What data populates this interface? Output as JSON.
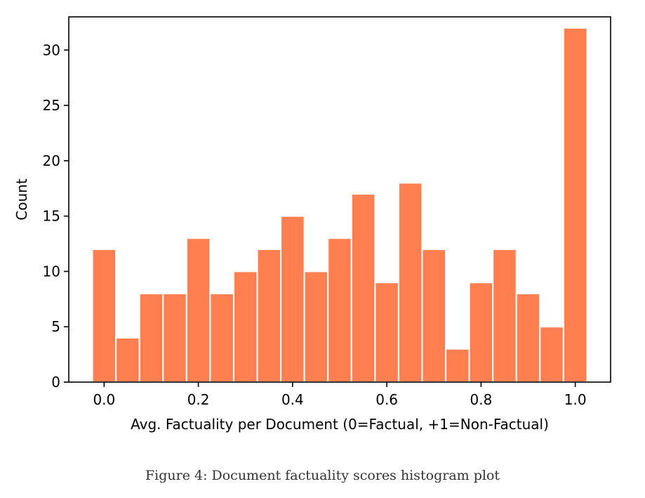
{
  "caption": "Figure 4: Document factuality scores histogram plot",
  "chart_data": {
    "type": "bar",
    "xlabel": "Avg. Factuality per Document (0=Factual, +1=Non-Factual)",
    "ylabel": "Count",
    "bar_color": "#ff7f50",
    "edge_color": "#ffffff",
    "xlim": [
      -0.075,
      1.075
    ],
    "ylim": [
      0,
      33
    ],
    "xticks": [
      0.0,
      0.2,
      0.4,
      0.6,
      0.8,
      1.0
    ],
    "xtick_labels": [
      "0.0",
      "0.2",
      "0.4",
      "0.6",
      "0.8",
      "1.0"
    ],
    "yticks": [
      0,
      5,
      10,
      15,
      20,
      25,
      30
    ],
    "ytick_labels": [
      "0",
      "5",
      "10",
      "15",
      "20",
      "25",
      "30"
    ],
    "bin_width": 0.05,
    "bin_centers": [
      0.0,
      0.05,
      0.1,
      0.15,
      0.2,
      0.25,
      0.3,
      0.35,
      0.4,
      0.45,
      0.5,
      0.55,
      0.6,
      0.65,
      0.7,
      0.75,
      0.8,
      0.85,
      0.9,
      0.95,
      1.0
    ],
    "values": [
      12,
      4,
      8,
      8,
      13,
      8,
      10,
      12,
      15,
      10,
      13,
      17,
      9,
      18,
      12,
      3,
      9,
      12,
      8,
      5,
      32
    ],
    "grid": false
  }
}
